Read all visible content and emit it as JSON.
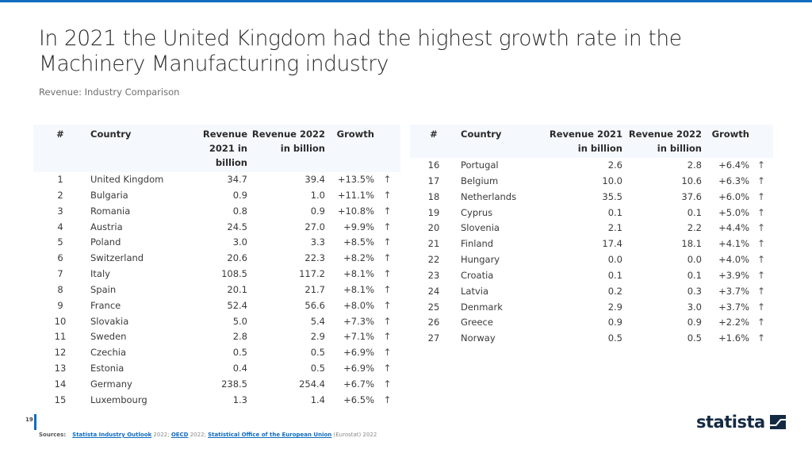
{
  "title": "In 2021 the United Kingdom had the highest growth rate in the Machinery Manufacturing industry",
  "subtitle": "Revenue: Industry Comparison",
  "colors": {
    "accent": "#0f6cc0",
    "header_bg": "#f5f8fc",
    "logo": "#142a44"
  },
  "tables": {
    "left": {
      "headers": {
        "rank": "#",
        "country": "Country",
        "rev2021": "Revenue 2021 in billion",
        "rev2022": "Revenue 2022 in billion",
        "growth": "Growth"
      }
    },
    "right": {
      "headers": {
        "rank": "#",
        "country": "Country",
        "rev2021": "Revenue 2021 in billion",
        "rev2022": "Revenue 2022 in billion",
        "growth": "Growth"
      }
    }
  },
  "chart_data": {
    "type": "table",
    "title": "In 2021 the United Kingdom had the highest growth rate in the Machinery Manufacturing industry",
    "subtitle": "Revenue: Industry Comparison",
    "columns": [
      "#",
      "Country",
      "Revenue 2021 in billion",
      "Revenue 2022 in billion",
      "Growth"
    ],
    "trend_icon": "arrow-up",
    "rows": [
      {
        "rank": "1",
        "country": "United Kingdom",
        "rev2021": "34.7",
        "rev2022": "39.4",
        "growth": "+13.5%"
      },
      {
        "rank": "2",
        "country": "Bulgaria",
        "rev2021": "0.9",
        "rev2022": "1.0",
        "growth": "+11.1%"
      },
      {
        "rank": "3",
        "country": "Romania",
        "rev2021": "0.8",
        "rev2022": "0.9",
        "growth": "+10.8%"
      },
      {
        "rank": "4",
        "country": "Austria",
        "rev2021": "24.5",
        "rev2022": "27.0",
        "growth": "+9.9%"
      },
      {
        "rank": "5",
        "country": "Poland",
        "rev2021": "3.0",
        "rev2022": "3.3",
        "growth": "+8.5%"
      },
      {
        "rank": "6",
        "country": "Switzerland",
        "rev2021": "20.6",
        "rev2022": "22.3",
        "growth": "+8.2%"
      },
      {
        "rank": "7",
        "country": "Italy",
        "rev2021": "108.5",
        "rev2022": "117.2",
        "growth": "+8.1%"
      },
      {
        "rank": "8",
        "country": "Spain",
        "rev2021": "20.1",
        "rev2022": "21.7",
        "growth": "+8.1%"
      },
      {
        "rank": "9",
        "country": "France",
        "rev2021": "52.4",
        "rev2022": "56.6",
        "growth": "+8.0%"
      },
      {
        "rank": "10",
        "country": "Slovakia",
        "rev2021": "5.0",
        "rev2022": "5.4",
        "growth": "+7.3%"
      },
      {
        "rank": "11",
        "country": "Sweden",
        "rev2021": "2.8",
        "rev2022": "2.9",
        "growth": "+7.1%"
      },
      {
        "rank": "12",
        "country": "Czechia",
        "rev2021": "0.5",
        "rev2022": "0.5",
        "growth": "+6.9%"
      },
      {
        "rank": "13",
        "country": "Estonia",
        "rev2021": "0.4",
        "rev2022": "0.5",
        "growth": "+6.9%"
      },
      {
        "rank": "14",
        "country": "Germany",
        "rev2021": "238.5",
        "rev2022": "254.4",
        "growth": "+6.7%"
      },
      {
        "rank": "15",
        "country": "Luxembourg",
        "rev2021": "1.3",
        "rev2022": "1.4",
        "growth": "+6.5%"
      },
      {
        "rank": "16",
        "country": "Portugal",
        "rev2021": "2.6",
        "rev2022": "2.8",
        "growth": "+6.4%"
      },
      {
        "rank": "17",
        "country": "Belgium",
        "rev2021": "10.0",
        "rev2022": "10.6",
        "growth": "+6.3%"
      },
      {
        "rank": "18",
        "country": "Netherlands",
        "rev2021": "35.5",
        "rev2022": "37.6",
        "growth": "+6.0%"
      },
      {
        "rank": "19",
        "country": "Cyprus",
        "rev2021": "0.1",
        "rev2022": "0.1",
        "growth": "+5.0%"
      },
      {
        "rank": "20",
        "country": "Slovenia",
        "rev2021": "2.1",
        "rev2022": "2.2",
        "growth": "+4.4%"
      },
      {
        "rank": "21",
        "country": "Finland",
        "rev2021": "17.4",
        "rev2022": "18.1",
        "growth": "+4.1%"
      },
      {
        "rank": "22",
        "country": "Hungary",
        "rev2021": "0.0",
        "rev2022": "0.0",
        "growth": "+4.0%"
      },
      {
        "rank": "23",
        "country": "Croatia",
        "rev2021": "0.1",
        "rev2022": "0.1",
        "growth": "+3.9%"
      },
      {
        "rank": "24",
        "country": "Latvia",
        "rev2021": "0.2",
        "rev2022": "0.3",
        "growth": "+3.7%"
      },
      {
        "rank": "25",
        "country": "Denmark",
        "rev2021": "2.9",
        "rev2022": "3.0",
        "growth": "+3.7%"
      },
      {
        "rank": "26",
        "country": "Greece",
        "rev2021": "0.9",
        "rev2022": "0.9",
        "growth": "+2.2%"
      },
      {
        "rank": "27",
        "country": "Norway",
        "rev2021": "0.5",
        "rev2022": "0.5",
        "growth": "+1.6%"
      }
    ]
  },
  "arrow_glyph": "↑",
  "footer": {
    "page_number": "19",
    "sources_label": "Sources:",
    "sources": [
      {
        "link": "Statista Industry Outlook",
        "suffix": " 2022; "
      },
      {
        "link": "OECD",
        "suffix": " 2022; "
      },
      {
        "link": "Statistical Office of the European Union",
        "suffix": " (Eurostat) 2022"
      }
    ]
  },
  "logo": {
    "text": "statista",
    "icon": "statista-logo-icon"
  }
}
